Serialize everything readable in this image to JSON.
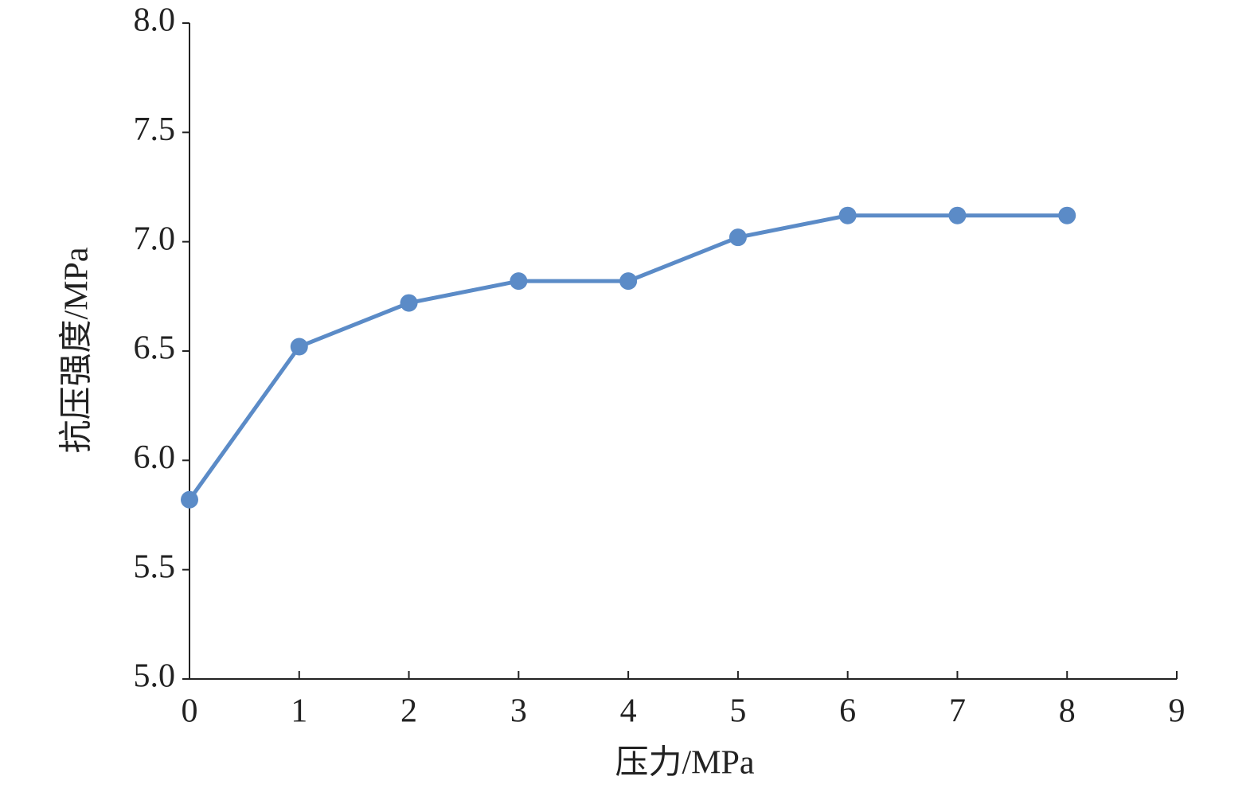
{
  "chart_data": {
    "type": "line",
    "x_label": "压力/MPa",
    "y_label": "抗压强度/MPa",
    "x": [
      0,
      1,
      2,
      3,
      4,
      5,
      6,
      7,
      8
    ],
    "values": [
      5.82,
      6.52,
      6.72,
      6.82,
      6.82,
      7.02,
      7.12,
      7.12,
      7.12
    ],
    "color": "#5b8bc7",
    "xlim": [
      0,
      9
    ],
    "xticks": [
      0,
      1,
      2,
      3,
      4,
      5,
      6,
      7,
      8,
      9
    ],
    "ylim": [
      5,
      8
    ],
    "yticks": [
      {
        "value": 5,
        "label": "5.0"
      },
      5.5,
      {
        "value": 6,
        "label": "6.0"
      },
      6.5,
      {
        "value": 7,
        "label": "7.0"
      },
      7.5,
      {
        "value": 8,
        "label": "8.0"
      }
    ],
    "grid": false
  }
}
